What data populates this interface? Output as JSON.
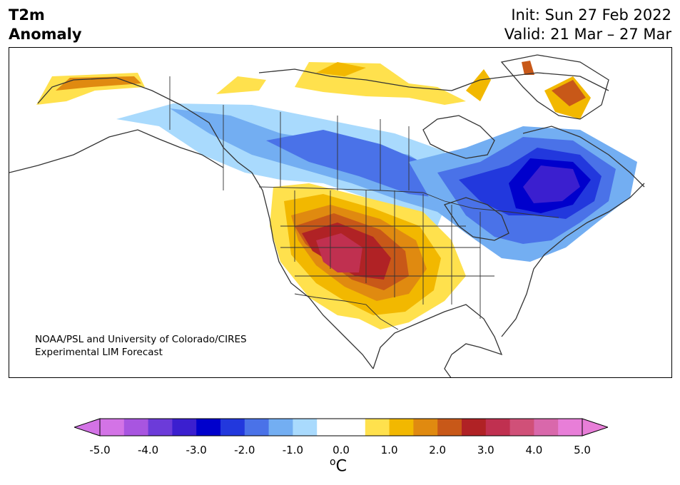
{
  "header": {
    "title_line1": "T2m",
    "title_line2": "Anomaly",
    "init_text": "Init: Sun 27 Feb 2022",
    "valid_text": "Valid: 21 Mar – 27 Mar"
  },
  "credit": {
    "line1": "NOAA/PSL and University of Colorado/CIRES",
    "line2": "Experimental LIM Forecast"
  },
  "colorbar": {
    "units_base": "C",
    "units_sup": "o",
    "ticks": [
      "-5.0",
      "-4.0",
      "-3.0",
      "-2.0",
      "-1.0",
      "0.0",
      "1.0",
      "2.0",
      "3.0",
      "4.0",
      "5.0"
    ],
    "colors": [
      "#d373e6",
      "#a855e0",
      "#6c3bd9",
      "#3b1fcf",
      "#0000cc",
      "#2238dd",
      "#4a72e8",
      "#73aef2",
      "#a9dafd",
      "#ffffff",
      "#ffffff",
      "#ffe14d",
      "#f2b800",
      "#e08a10",
      "#c85818",
      "#b02225",
      "#c03050",
      "#d05078",
      "#d968ab",
      "#e87ed8"
    ],
    "under_color": "#d373e6",
    "over_color": "#e87ed8"
  },
  "map": {
    "type": "temperature anomaly map",
    "region": "North America"
  }
}
